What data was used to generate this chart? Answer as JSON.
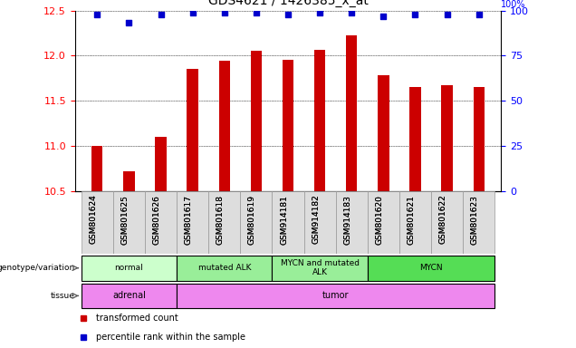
{
  "title": "GDS4621 / 1426385_x_at",
  "samples": [
    "GSM801624",
    "GSM801625",
    "GSM801626",
    "GSM801617",
    "GSM801618",
    "GSM801619",
    "GSM914181",
    "GSM914182",
    "GSM914183",
    "GSM801620",
    "GSM801621",
    "GSM801622",
    "GSM801623"
  ],
  "bar_values": [
    11.0,
    10.72,
    11.1,
    11.85,
    11.94,
    12.05,
    11.95,
    12.06,
    12.22,
    11.78,
    11.65,
    11.67,
    11.65
  ],
  "percentile_values": [
    98,
    93,
    98,
    99,
    99,
    99,
    98,
    99,
    99,
    97,
    98,
    98,
    98
  ],
  "ylim_left": [
    10.5,
    12.5
  ],
  "ylim_right": [
    0,
    100
  ],
  "yticks_left": [
    10.5,
    11.0,
    11.5,
    12.0,
    12.5
  ],
  "yticks_right": [
    0,
    25,
    50,
    75,
    100
  ],
  "bar_color": "#cc0000",
  "dot_color": "#0000cc",
  "title_fontsize": 10,
  "bar_width": 0.35,
  "genotype_groups": [
    {
      "label": "normal",
      "start": 0,
      "end": 3,
      "color": "#ccffcc"
    },
    {
      "label": "mutated ALK",
      "start": 3,
      "end": 6,
      "color": "#99ee99"
    },
    {
      "label": "MYCN and mutated\nALK",
      "start": 6,
      "end": 9,
      "color": "#99ee99"
    },
    {
      "label": "MYCN",
      "start": 9,
      "end": 13,
      "color": "#55dd55"
    }
  ],
  "tissue_groups": [
    {
      "label": "adrenal",
      "start": 0,
      "end": 3,
      "color": "#ee88ee"
    },
    {
      "label": "tumor",
      "start": 3,
      "end": 13,
      "color": "#ee88ee"
    }
  ],
  "legend_items": [
    {
      "color": "#cc0000",
      "label": "transformed count"
    },
    {
      "color": "#0000cc",
      "label": "percentile rank within the sample"
    }
  ]
}
